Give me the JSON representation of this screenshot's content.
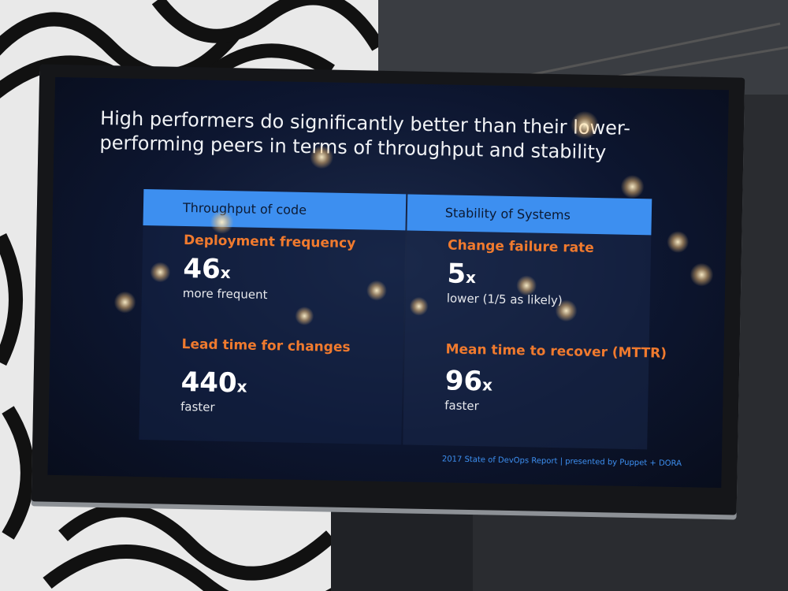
{
  "slide": {
    "title": "High performers do significantly better than their lower-performing peers in terms of throughput and stability",
    "columns": [
      {
        "header": "Throughput of code",
        "metrics": [
          {
            "label": "Deployment frequency",
            "value": 46,
            "unit": "x",
            "description": "more frequent"
          },
          {
            "label": "Lead time for changes",
            "value": 440,
            "unit": "x",
            "description": "faster"
          }
        ]
      },
      {
        "header": "Stability of Systems",
        "metrics": [
          {
            "label": "Change failure rate",
            "value": 5,
            "unit": "x",
            "description": "lower (1/5 as likely)"
          },
          {
            "label": "Mean time to recover (MTTR)",
            "value": 96,
            "unit": "x",
            "description": "faster"
          }
        ]
      }
    ],
    "footer": "2017 State of DevOps Report | presented by Puppet + DORA"
  }
}
